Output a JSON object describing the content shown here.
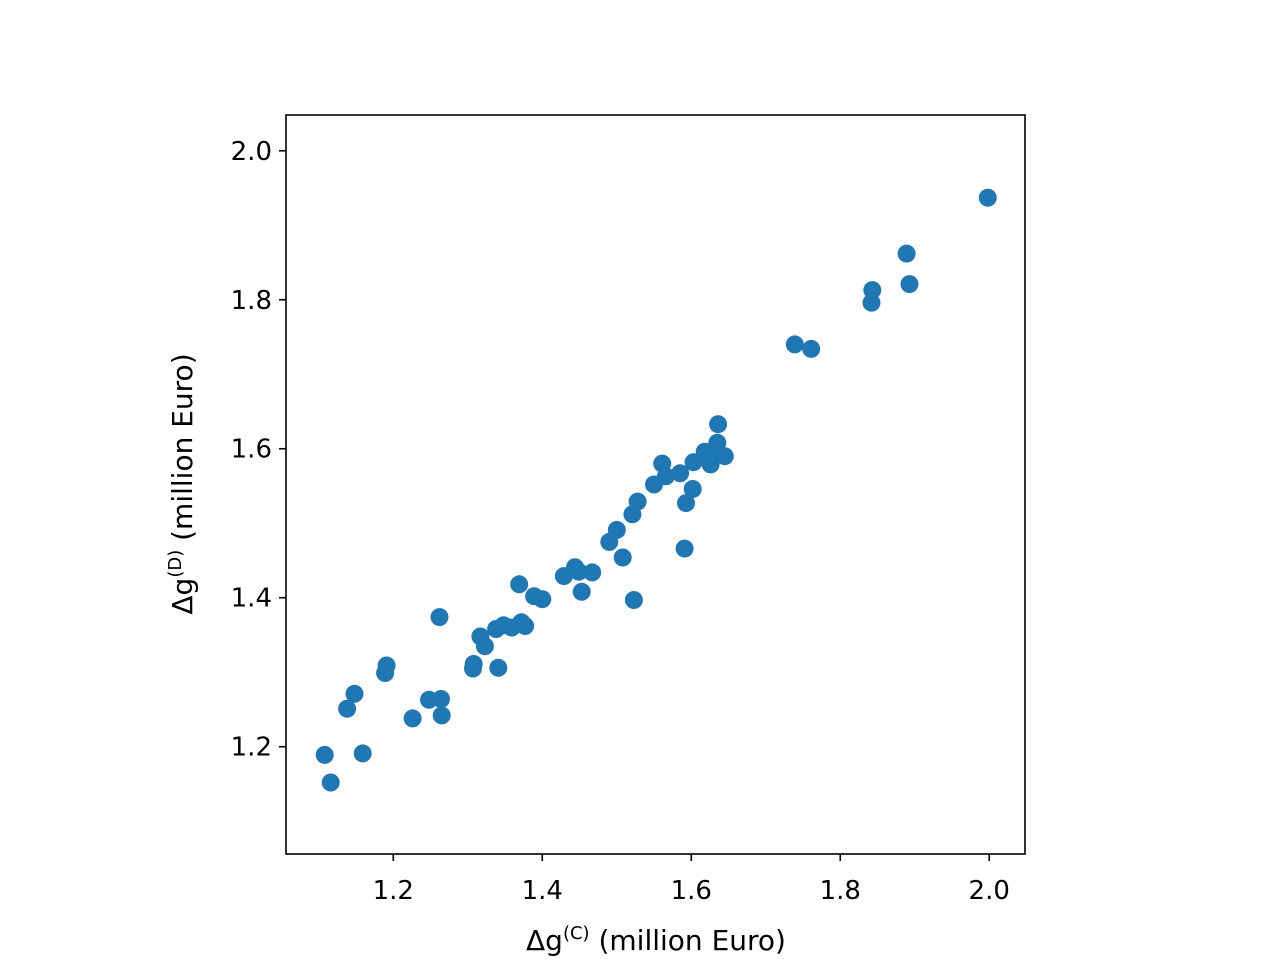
{
  "chart_data": {
    "type": "scatter",
    "title": "",
    "xlabel": {
      "base": "Δg",
      "sup": "(C)",
      "suffix": " (million Euro)"
    },
    "ylabel": {
      "base": "Δg",
      "sup": "(D)",
      "suffix": " (million Euro)"
    },
    "xlim": [
      1.056,
      2.048
    ],
    "ylim": [
      1.056,
      2.048
    ],
    "xticks": [
      1.2,
      1.4,
      1.6,
      1.8,
      2.0
    ],
    "yticks": [
      1.2,
      1.4,
      1.6,
      1.8,
      2.0
    ],
    "xtick_labels": [
      "1.2",
      "1.4",
      "1.6",
      "1.8",
      "2.0"
    ],
    "ytick_labels": [
      "1.2",
      "1.4",
      "1.6",
      "1.8",
      "2.0"
    ],
    "grid": false,
    "marker_color": "#1f77b4",
    "points": [
      [
        1.108,
        1.189
      ],
      [
        1.116,
        1.152
      ],
      [
        1.138,
        1.251
      ],
      [
        1.148,
        1.271
      ],
      [
        1.159,
        1.191
      ],
      [
        1.189,
        1.299
      ],
      [
        1.191,
        1.309
      ],
      [
        1.226,
        1.238
      ],
      [
        1.248,
        1.263
      ],
      [
        1.262,
        1.374
      ],
      [
        1.264,
        1.264
      ],
      [
        1.265,
        1.242
      ],
      [
        1.307,
        1.305
      ],
      [
        1.308,
        1.311
      ],
      [
        1.317,
        1.348
      ],
      [
        1.323,
        1.335
      ],
      [
        1.338,
        1.358
      ],
      [
        1.341,
        1.306
      ],
      [
        1.348,
        1.363
      ],
      [
        1.359,
        1.36
      ],
      [
        1.369,
        1.418
      ],
      [
        1.372,
        1.367
      ],
      [
        1.377,
        1.362
      ],
      [
        1.389,
        1.402
      ],
      [
        1.4,
        1.398
      ],
      [
        1.429,
        1.429
      ],
      [
        1.444,
        1.441
      ],
      [
        1.449,
        1.435
      ],
      [
        1.453,
        1.408
      ],
      [
        1.467,
        1.434
      ],
      [
        1.49,
        1.475
      ],
      [
        1.5,
        1.491
      ],
      [
        1.508,
        1.454
      ],
      [
        1.521,
        1.512
      ],
      [
        1.523,
        1.397
      ],
      [
        1.528,
        1.529
      ],
      [
        1.55,
        1.552
      ],
      [
        1.561,
        1.58
      ],
      [
        1.566,
        1.563
      ],
      [
        1.585,
        1.567
      ],
      [
        1.591,
        1.466
      ],
      [
        1.593,
        1.527
      ],
      [
        1.602,
        1.546
      ],
      [
        1.603,
        1.582
      ],
      [
        1.618,
        1.596
      ],
      [
        1.626,
        1.579
      ],
      [
        1.63,
        1.593
      ],
      [
        1.635,
        1.608
      ],
      [
        1.636,
        1.633
      ],
      [
        1.645,
        1.59
      ],
      [
        1.739,
        1.74
      ],
      [
        1.761,
        1.734
      ],
      [
        1.842,
        1.796
      ],
      [
        1.843,
        1.813
      ],
      [
        1.889,
        1.862
      ],
      [
        1.893,
        1.821
      ],
      [
        1.998,
        1.937
      ]
    ]
  }
}
